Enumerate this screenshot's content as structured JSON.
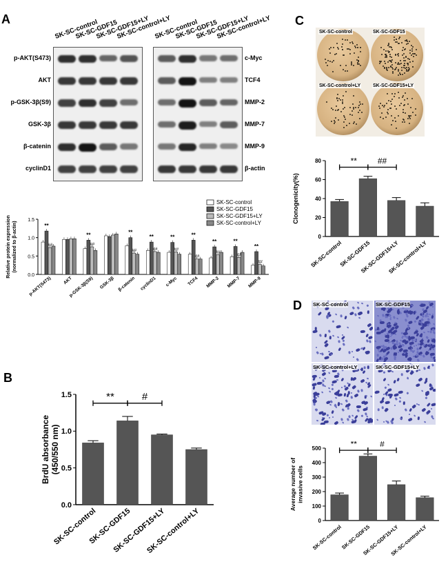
{
  "panels": {
    "a": "A",
    "b": "B",
    "c": "C",
    "d": "D"
  },
  "panelA": {
    "lanes": [
      "SK-SC-control",
      "SK-SC-GDF15",
      "SK-SC-GDF15+LY",
      "SK-SC-control+LY"
    ],
    "left_blots": [
      {
        "label": "p-AKT(S473)",
        "bands": [
          0.85,
          0.85,
          0.55,
          0.65
        ]
      },
      {
        "label": "AKT",
        "bands": [
          0.8,
          0.8,
          0.8,
          0.8
        ]
      },
      {
        "label": "p-GSK-3β(S9)",
        "bands": [
          0.75,
          0.85,
          0.75,
          0.5
        ]
      },
      {
        "label": "GSK-3β",
        "bands": [
          0.8,
          0.8,
          0.8,
          0.8
        ]
      },
      {
        "label": "β-catenin",
        "bands": [
          0.85,
          1.0,
          0.6,
          0.45
        ]
      },
      {
        "label": "cyclinD1",
        "bands": [
          0.75,
          0.75,
          0.75,
          0.75
        ]
      }
    ],
    "right_blots": [
      {
        "label": "c-Myc",
        "bands": [
          0.6,
          0.85,
          0.45,
          0.5
        ]
      },
      {
        "label": "TCF4",
        "bands": [
          0.6,
          1.0,
          0.4,
          0.4
        ]
      },
      {
        "label": "MMP-2",
        "bands": [
          0.5,
          1.0,
          0.6,
          0.55
        ]
      },
      {
        "label": "MMP-7",
        "bands": [
          0.5,
          0.95,
          0.4,
          0.6
        ]
      },
      {
        "label": "MMP-9",
        "bands": [
          0.45,
          0.9,
          0.4,
          0.35
        ]
      },
      {
        "label": "β-actin",
        "bands": [
          0.8,
          0.8,
          0.8,
          0.8
        ]
      }
    ]
  },
  "chart_data": [
    {
      "id": "A-bar",
      "type": "bar",
      "ylabel": "Relative protein expression\n(normalized to β-actin)",
      "ylim": [
        0,
        1.5
      ],
      "yticks": [
        "0.0",
        "0.5",
        "1.0",
        "1.5"
      ],
      "categories": [
        "p-AKT(S473)",
        "AKT",
        "p-GSK-3β(S9)",
        "GSK-3β",
        "β-catenin",
        "cyclinD1",
        "c-Myc",
        "TCF4",
        "MMP-2",
        "MMP-7",
        "MMP-9"
      ],
      "legend": [
        "SK-SC-control",
        "SK-SC-GDF15",
        "SK-SC-GDF15+LY",
        "SK-SC-control+LY"
      ],
      "series": [
        {
          "name": "SK-SC-control",
          "fill": "#ffffff",
          "values": [
            0.88,
            0.95,
            0.7,
            1.05,
            0.78,
            0.65,
            0.6,
            0.55,
            0.45,
            0.48,
            0.25
          ]
        },
        {
          "name": "SK-SC-GDF15",
          "fill": "#555555",
          "values": [
            1.18,
            0.95,
            0.93,
            1.03,
            1.0,
            0.88,
            0.87,
            0.93,
            0.75,
            0.76,
            0.62
          ]
        },
        {
          "name": "SK-SC-GDF15+LY",
          "fill": "#bbbbbb",
          "values": [
            0.73,
            0.97,
            0.75,
            1.07,
            0.58,
            0.62,
            0.61,
            0.42,
            0.53,
            0.46,
            0.27
          ]
        },
        {
          "name": "SK-SC-control+LY",
          "fill": "#888888",
          "values": [
            0.77,
            0.97,
            0.65,
            1.1,
            0.55,
            0.6,
            0.55,
            0.42,
            0.6,
            0.6,
            0.23
          ]
        }
      ],
      "annotations_gdf15": [
        "**",
        "",
        "**",
        "",
        "**",
        "**",
        "**",
        "**",
        "**",
        "**",
        "**"
      ],
      "annotations_ly": [
        "##",
        "",
        "##",
        "",
        "##",
        "##",
        "##",
        "##",
        "##",
        "##",
        "##"
      ]
    },
    {
      "id": "B-bar",
      "type": "bar",
      "ylabel": "BrdU absorbance\n(450/550 nm)",
      "ylim": [
        0,
        1.5
      ],
      "yticks": [
        "0.0",
        "0.5",
        "1.0",
        "1.5"
      ],
      "categories": [
        "SK-SC-control",
        "SK-SC-GDF15",
        "SK-SC-GDF15+LY",
        "SK-SC-control+LY"
      ],
      "values": [
        0.84,
        1.14,
        0.95,
        0.75
      ],
      "errors": [
        0.03,
        0.06,
        0.01,
        0.02
      ],
      "brackets": [
        {
          "from": 0,
          "to": 1,
          "label": "**"
        },
        {
          "from": 1,
          "to": 2,
          "label": "#"
        }
      ]
    },
    {
      "id": "C-bar",
      "type": "bar",
      "ylabel": "Clonogenicity(%)",
      "ylim": [
        0,
        80
      ],
      "yticks": [
        "0",
        "20",
        "40",
        "60",
        "80"
      ],
      "categories": [
        "SK-SC-control",
        "SK-SC-GDF15",
        "SK-SC-GDF15+LY",
        "SK-SC-control+LY"
      ],
      "values": [
        37,
        61,
        38,
        32
      ],
      "errors": [
        2,
        2.5,
        3,
        3.5
      ],
      "brackets": [
        {
          "from": 0,
          "to": 1,
          "label": "**"
        },
        {
          "from": 1,
          "to": 2,
          "label": "##"
        }
      ]
    },
    {
      "id": "D-bar",
      "type": "bar",
      "ylabel": "Average number of\ninvasive cells",
      "ylim": [
        0,
        500
      ],
      "yticks": [
        "0",
        "100",
        "200",
        "300",
        "400",
        "500"
      ],
      "categories": [
        "SK-SC-control",
        "SK-SC-GDF15",
        "SK-SC-GDF15+LY",
        "SK-SC-control+LY"
      ],
      "values": [
        178,
        445,
        248,
        158
      ],
      "errors": [
        12,
        15,
        25,
        10
      ],
      "brackets": [
        {
          "from": 0,
          "to": 1,
          "label": "**"
        },
        {
          "from": 1,
          "to": 2,
          "label": "#"
        }
      ]
    }
  ],
  "panelC": {
    "dishes": [
      "SK-SC-control",
      "SK-SC-GDF15",
      "SK-SC-control+LY",
      "SK-SC-GDF15+LY"
    ]
  },
  "panelD": {
    "images": [
      "SK-SC-control",
      "SK-SC-GDF15",
      "SK-SC-control+LY",
      "SK-SC-GDF15+LY"
    ]
  }
}
